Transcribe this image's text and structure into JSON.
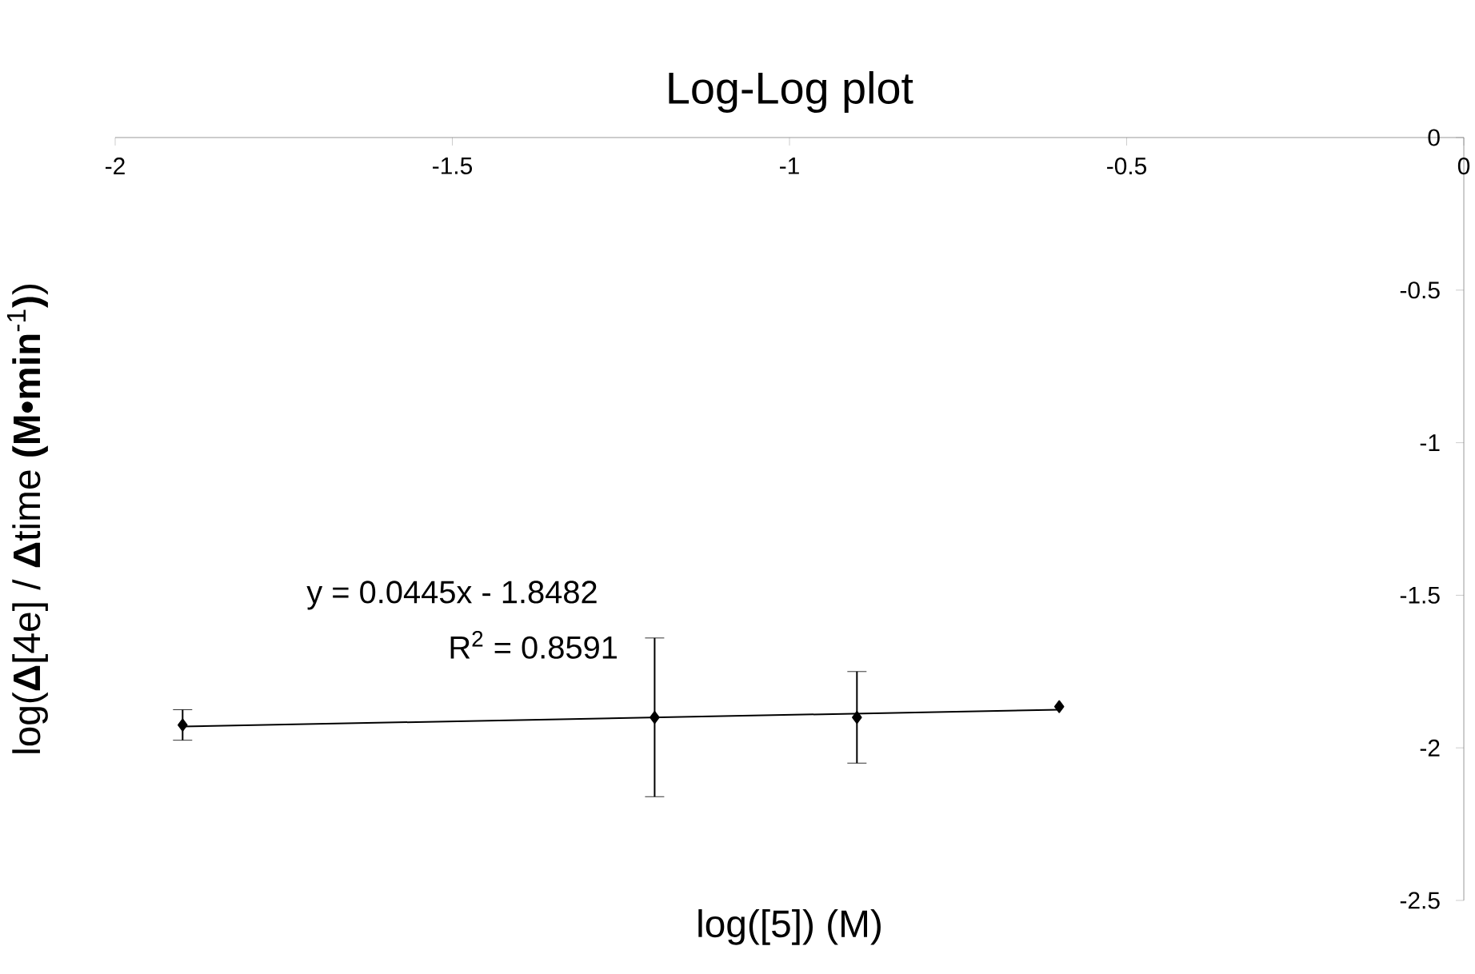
{
  "chart_data": {
    "type": "scatter",
    "title": "Log-Log plot",
    "xlabel": "log([5]) (M)",
    "ylabel": "log(**Δ**[4e] / **Δ**time **(M•min**$^{-1}$**)**)",
    "annotations": [
      "y = 0.0445x - 1.8482",
      "R$^{2}$ = 0.8591"
    ],
    "xlim": [
      -2,
      0
    ],
    "ylim": [
      -2.5,
      0
    ],
    "xticks": [
      -2,
      -1.5,
      -1,
      -0.5,
      0
    ],
    "yticks": [
      -2.5,
      -2,
      -1.5,
      -1,
      -0.5,
      0
    ],
    "marker": "diamond",
    "series": [
      {
        "color": "#000000",
        "x": [
          -1.9,
          -1.2,
          -0.9,
          -0.6
        ],
        "values": [
          -1.925,
          -1.9,
          -1.9,
          -1.865
        ],
        "errors": [
          0.05,
          0.26,
          0.15,
          null
        ]
      },
      {
        "type": "line",
        "color": "#000000",
        "marker": "none",
        "x": [
          -1.9,
          -0.6
        ],
        "values": [
          -1.93,
          -1.875
        ]
      }
    ]
  }
}
